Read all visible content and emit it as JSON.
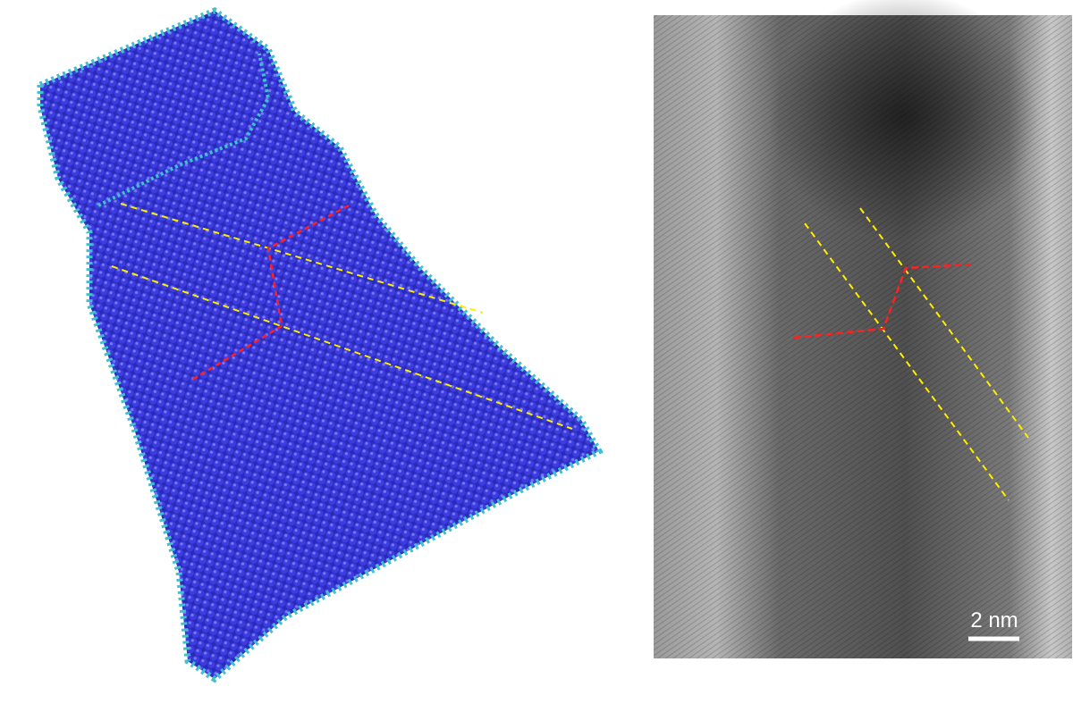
{
  "scale_bar": {
    "label": "2 nm"
  }
}
